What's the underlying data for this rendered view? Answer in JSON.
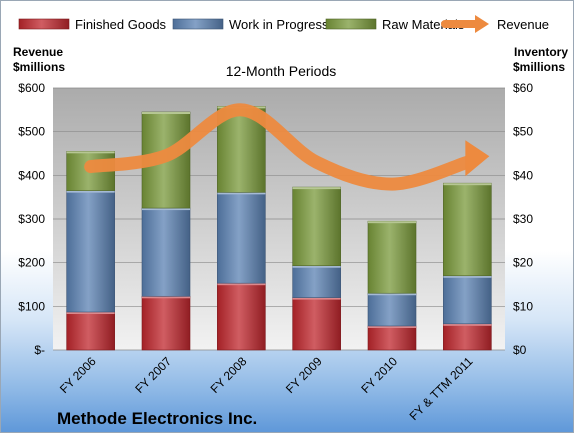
{
  "chart_data": {
    "type": "bar",
    "stacked": true,
    "title": "12-Month Periods",
    "company": "Methode Electronics Inc.",
    "categories": [
      "FY 2006",
      "FY 2007",
      "FY 2008",
      "FY 2009",
      "FY 2010",
      "FY & TTM 2011"
    ],
    "series": [
      {
        "name": "Finished Goods",
        "axis": "right",
        "color": "#c0272d",
        "values": [
          8.7,
          12.3,
          15.3,
          12.0,
          5.5,
          6.0
        ]
      },
      {
        "name": "Work in Progress",
        "axis": "right",
        "color": "#5b81b3",
        "values": [
          27.8,
          20.2,
          20.8,
          7.3,
          7.5,
          11.0
        ]
      },
      {
        "name": "Raw Materials",
        "axis": "right",
        "color": "#7a9a3b",
        "values": [
          9.0,
          22.0,
          19.7,
          18.0,
          16.5,
          21.2
        ]
      },
      {
        "name": "Revenue",
        "axis": "left",
        "type": "line",
        "color": "#ed8a3f",
        "values": [
          420,
          445,
          550,
          430,
          380,
          430
        ]
      }
    ],
    "y_left": {
      "label_line1": "Revenue",
      "label_line2": "$millions",
      "lim": [
        0,
        600
      ],
      "ticks": [
        "$-",
        "$100",
        "$200",
        "$300",
        "$400",
        "$500",
        "$600"
      ]
    },
    "y_right": {
      "label_line1": "Inventory",
      "label_line2": "$millions",
      "lim": [
        0,
        60
      ],
      "ticks": [
        "$0",
        "$10",
        "$20",
        "$30",
        "$40",
        "$50",
        "$60"
      ]
    },
    "legend_position": "top",
    "grid": true
  }
}
